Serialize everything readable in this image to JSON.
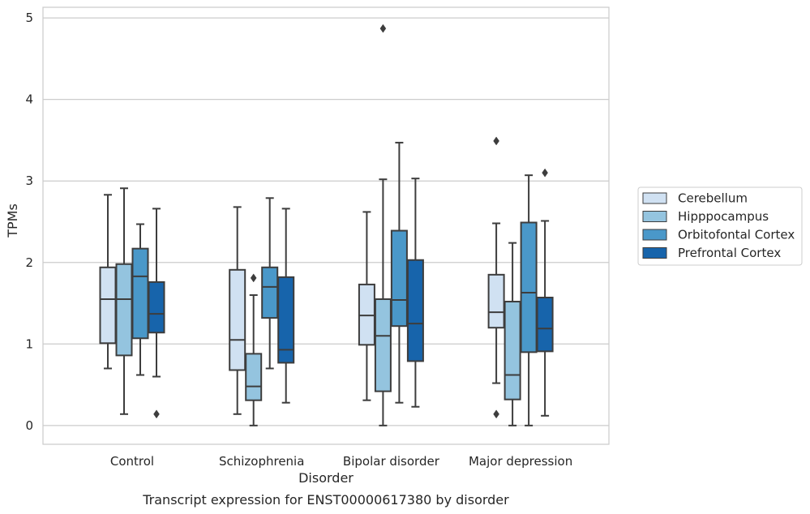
{
  "chart_data": {
    "type": "box",
    "caption": "Transcript expression for ENST00000617380 by disorder",
    "xlabel": "Disorder",
    "ylabel": "TPMs",
    "ylim": [
      -0.23,
      5.13
    ],
    "yticks": [
      0,
      1,
      2,
      3,
      4,
      5
    ],
    "categories": [
      "Control",
      "Schizophrenia",
      "Bipolar disorder",
      "Major depression"
    ],
    "grid": "horizontal",
    "legend_position": "right",
    "series": [
      {
        "name": "Cerebellum",
        "color": "#d0e1f2",
        "boxes": [
          {
            "whislo": 0.7,
            "q1": 1.01,
            "med": 1.55,
            "q3": 1.94,
            "whishi": 2.83,
            "fliers": []
          },
          {
            "whislo": 0.14,
            "q1": 0.68,
            "med": 1.05,
            "q3": 1.91,
            "whishi": 2.68,
            "fliers": []
          },
          {
            "whislo": 0.31,
            "q1": 0.99,
            "med": 1.35,
            "q3": 1.73,
            "whishi": 2.62,
            "fliers": []
          },
          {
            "whislo": 0.52,
            "q1": 1.2,
            "med": 1.39,
            "q3": 1.85,
            "whishi": 2.48,
            "fliers": [
              3.49,
              0.14
            ]
          }
        ]
      },
      {
        "name": "Hipppocampus",
        "color": "#94c4df",
        "boxes": [
          {
            "whislo": 0.14,
            "q1": 0.86,
            "med": 1.55,
            "q3": 1.98,
            "whishi": 2.91,
            "fliers": []
          },
          {
            "whislo": 0.0,
            "q1": 0.31,
            "med": 0.48,
            "q3": 0.88,
            "whishi": 1.6,
            "fliers": [
              1.81
            ]
          },
          {
            "whislo": 0.0,
            "q1": 0.42,
            "med": 1.1,
            "q3": 1.55,
            "whishi": 3.02,
            "fliers": [
              4.87
            ]
          },
          {
            "whislo": 0.0,
            "q1": 0.32,
            "med": 0.62,
            "q3": 1.52,
            "whishi": 2.24,
            "fliers": []
          }
        ]
      },
      {
        "name": "Orbitofontal Cortex",
        "color": "#4a98c9",
        "boxes": [
          {
            "whislo": 0.62,
            "q1": 1.07,
            "med": 1.83,
            "q3": 2.17,
            "whishi": 2.47,
            "fliers": []
          },
          {
            "whislo": 0.7,
            "q1": 1.32,
            "med": 1.7,
            "q3": 1.94,
            "whishi": 2.79,
            "fliers": []
          },
          {
            "whislo": 0.28,
            "q1": 1.22,
            "med": 1.54,
            "q3": 2.39,
            "whishi": 3.47,
            "fliers": []
          },
          {
            "whislo": 0.0,
            "q1": 0.9,
            "med": 1.63,
            "q3": 2.49,
            "whishi": 3.07,
            "fliers": []
          }
        ]
      },
      {
        "name": "Prefrontal Cortex",
        "color": "#1764ab",
        "boxes": [
          {
            "whislo": 0.6,
            "q1": 1.14,
            "med": 1.37,
            "q3": 1.76,
            "whishi": 2.66,
            "fliers": [
              0.14
            ]
          },
          {
            "whislo": 0.28,
            "q1": 0.77,
            "med": 0.93,
            "q3": 1.82,
            "whishi": 2.66,
            "fliers": []
          },
          {
            "whislo": 0.23,
            "q1": 0.79,
            "med": 1.25,
            "q3": 2.03,
            "whishi": 3.03,
            "fliers": []
          },
          {
            "whislo": 0.12,
            "q1": 0.91,
            "med": 1.19,
            "q3": 1.57,
            "whishi": 2.51,
            "fliers": [
              3.1
            ]
          }
        ]
      }
    ]
  }
}
